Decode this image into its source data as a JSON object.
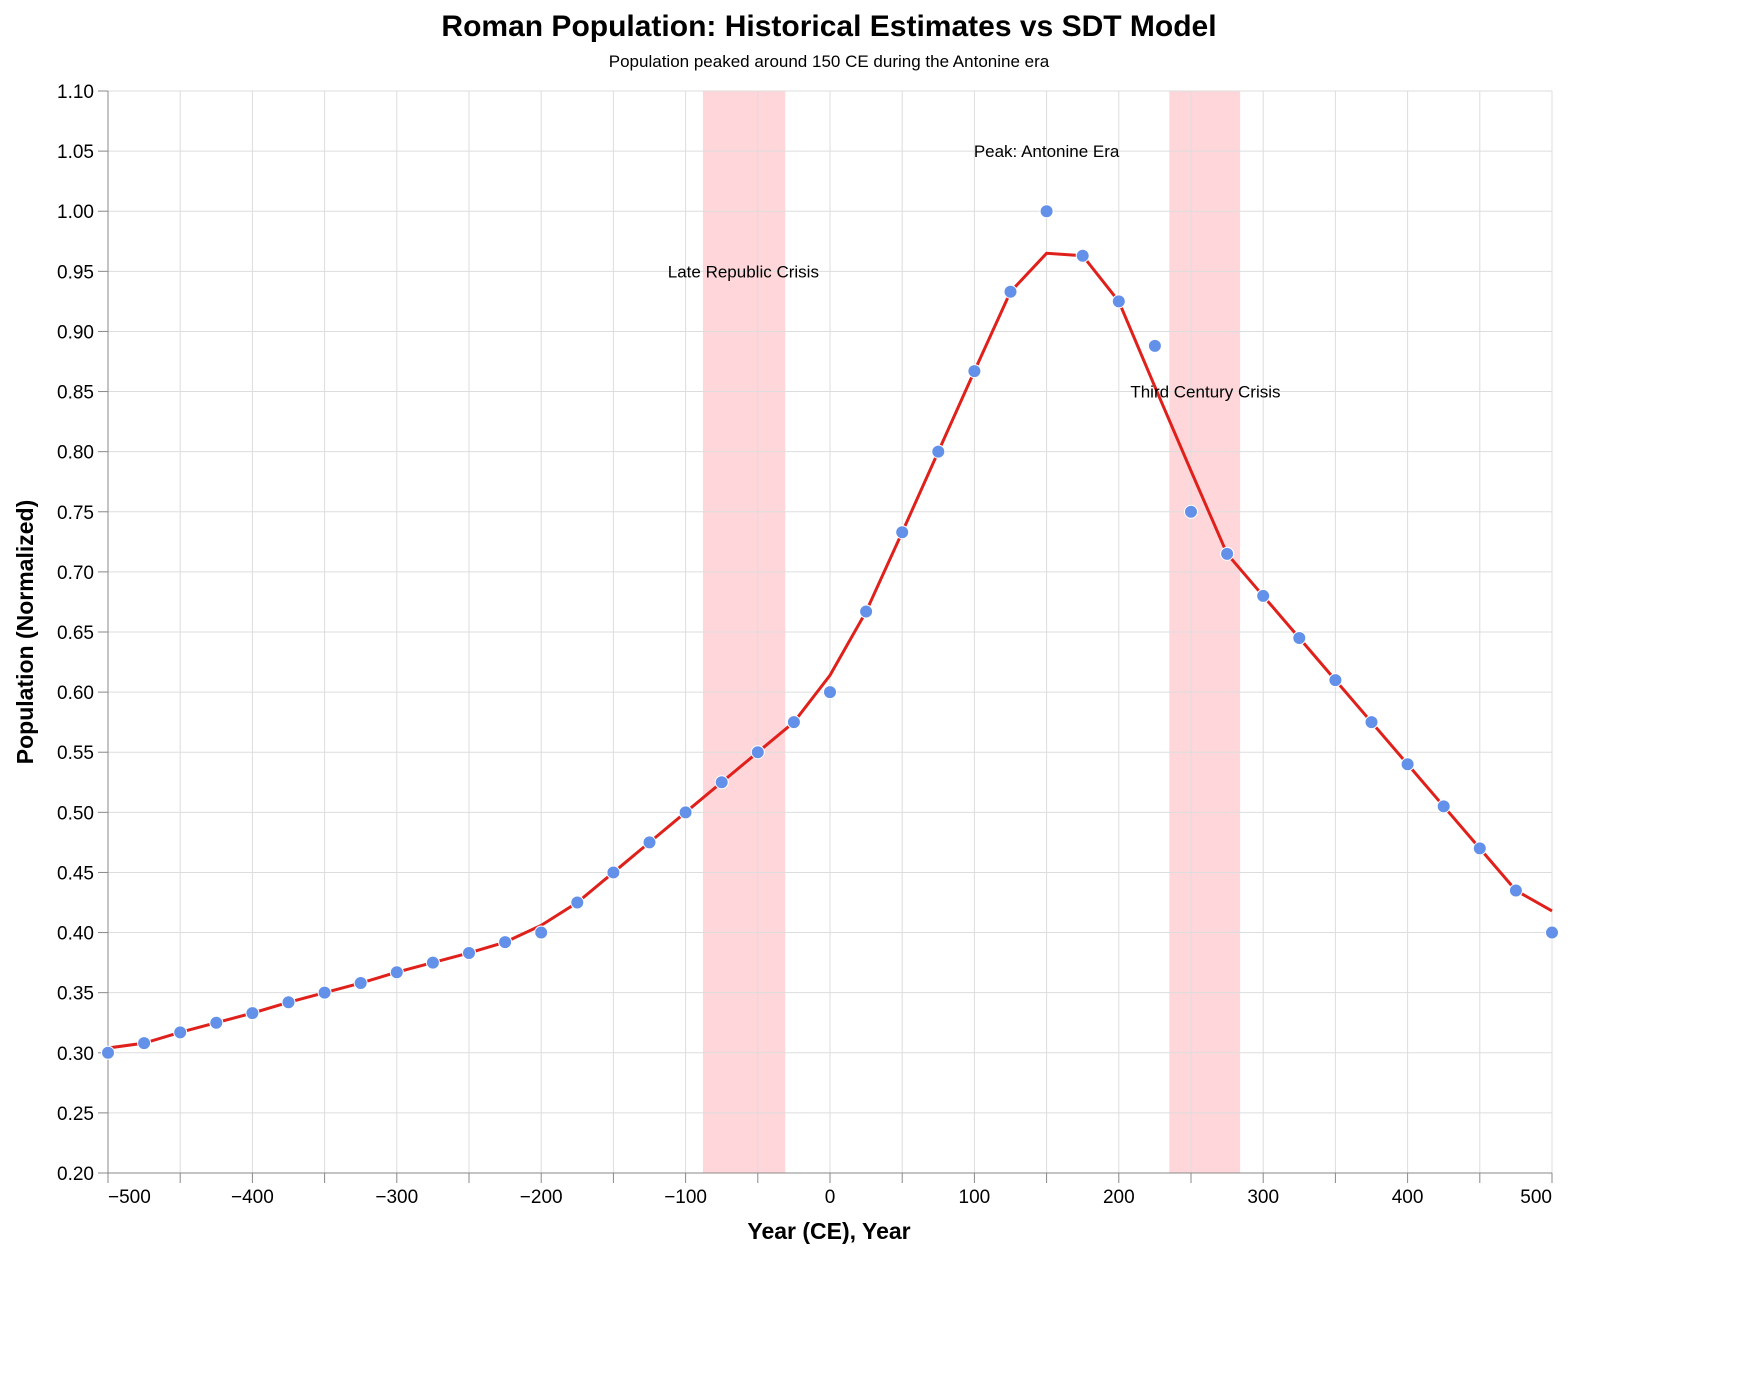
{
  "chart_data": {
    "type": "line+scatter",
    "title": "Roman Population: Historical Estimates vs SDT Model",
    "subtitle": "Population peaked around 150 CE during the Antonine era",
    "xlabel": "Year (CE), Year",
    "ylabel": "Population (Normalized)",
    "xlim": [
      -500,
      500
    ],
    "ylim": [
      0.2,
      1.1
    ],
    "x_ticks": [
      -500,
      -400,
      -300,
      -200,
      -100,
      0,
      100,
      200,
      300,
      400,
      500
    ],
    "y_ticks": [
      "0.20",
      "0.25",
      "0.30",
      "0.35",
      "0.40",
      "0.45",
      "0.50",
      "0.55",
      "0.60",
      "0.65",
      "0.70",
      "0.75",
      "0.80",
      "0.85",
      "0.90",
      "0.95",
      "1.00",
      "1.05",
      "1.10"
    ],
    "grid": true,
    "colors": {
      "points": "#6390e8",
      "model": "#e0201b",
      "band": "#ffd6da"
    },
    "x": [
      -500,
      -475,
      -450,
      -425,
      -400,
      -375,
      -350,
      -325,
      -300,
      -275,
      -250,
      -225,
      -200,
      -175,
      -150,
      -125,
      -100,
      -75,
      -50,
      -25,
      0,
      25,
      50,
      75,
      100,
      125,
      150,
      175,
      200,
      225,
      250,
      275,
      300,
      325,
      350,
      375,
      400,
      425,
      450,
      475,
      500
    ],
    "series": [
      {
        "type": "scatter",
        "values": [
          0.3,
          0.308,
          0.317,
          0.325,
          0.333,
          0.342,
          0.35,
          0.358,
          0.367,
          0.375,
          0.383,
          0.392,
          0.4,
          0.425,
          0.45,
          0.475,
          0.5,
          0.525,
          0.55,
          0.575,
          0.6,
          0.667,
          0.733,
          0.8,
          0.867,
          0.933,
          1.0,
          0.963,
          0.925,
          0.888,
          0.75,
          0.715,
          0.68,
          0.645,
          0.61,
          0.575,
          0.54,
          0.505,
          0.47,
          0.435,
          0.4
        ]
      },
      {
        "type": "line",
        "values": [
          0.304,
          0.308,
          0.317,
          0.325,
          0.333,
          0.342,
          0.35,
          0.358,
          0.367,
          0.375,
          0.383,
          0.392,
          0.406,
          0.425,
          0.45,
          0.475,
          0.5,
          0.525,
          0.55,
          0.575,
          0.614,
          0.667,
          0.733,
          0.8,
          0.867,
          0.933,
          0.965,
          0.963,
          0.925,
          0.854,
          0.784,
          0.715,
          0.68,
          0.645,
          0.61,
          0.575,
          0.54,
          0.505,
          0.47,
          0.435,
          0.418
        ]
      }
    ],
    "bands": [
      {
        "start": -88,
        "end": -31
      },
      {
        "start": 235,
        "end": 284
      }
    ],
    "annotations": [
      {
        "text": "Late Republic Crisis",
        "x": -60,
        "y": 0.95
      },
      {
        "text": "Peak: Antonine Era",
        "x": 150,
        "y": 1.05
      },
      {
        "text": "Third Century Crisis",
        "x": 260,
        "y": 0.85
      }
    ]
  }
}
